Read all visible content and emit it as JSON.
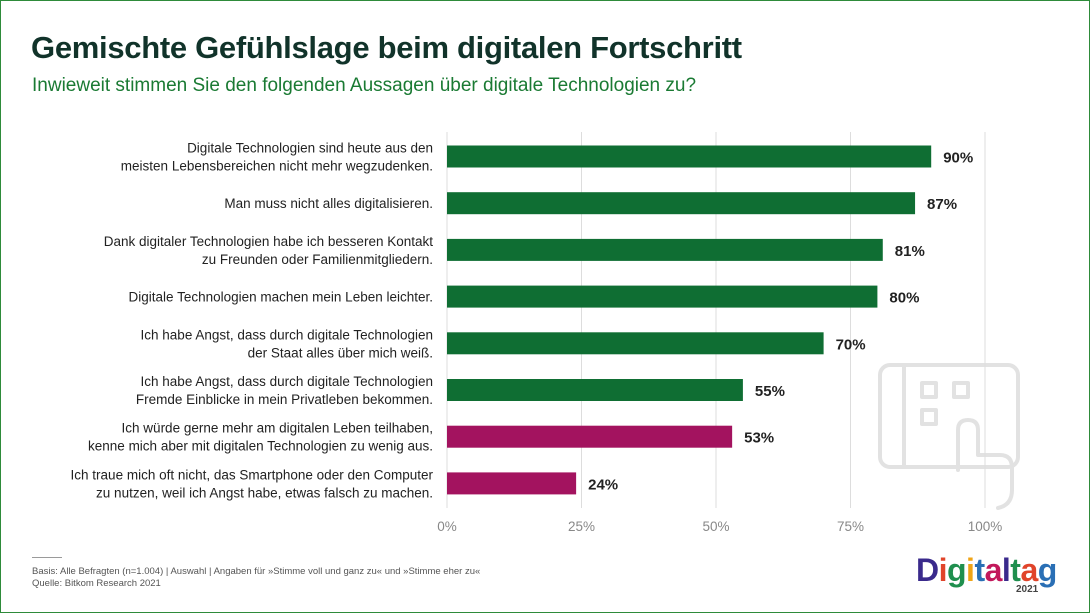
{
  "header": {
    "title": "Gemischte Gefühlslage beim digitalen Fortschritt",
    "subtitle": "Inwieweit stimmen Sie den folgenden Aussagen über digitale Technologien zu?"
  },
  "chart_data": {
    "type": "bar",
    "orientation": "horizontal",
    "categories": [
      [
        "Digitale Technologien sind heute aus den",
        "meisten Lebensbereichen nicht mehr wegzudenken."
      ],
      [
        "Man muss nicht alles digitalisieren."
      ],
      [
        "Dank digitaler Technologien habe ich besseren Kontakt",
        "zu Freunden oder Familienmitgliedern."
      ],
      [
        "Digitale Technologien machen mein Leben leichter."
      ],
      [
        "Ich habe Angst, dass durch digitale Technologien",
        "der Staat alles über mich weiß."
      ],
      [
        "Ich habe Angst, dass durch digitale Technologien",
        "Fremde Einblicke in mein Privatleben bekommen."
      ],
      [
        "Ich würde gerne mehr am digitalen Leben teilhaben,",
        "kenne mich aber mit digitalen Technologien zu wenig aus."
      ],
      [
        "Ich traue mich oft nicht, das Smartphone oder den Computer",
        "zu nutzen, weil ich Angst habe, etwas falsch zu machen."
      ]
    ],
    "values": [
      90,
      87,
      81,
      80,
      70,
      55,
      53,
      24
    ],
    "value_labels": [
      "90%",
      "87%",
      "81%",
      "80%",
      "70%",
      "55%",
      "53%",
      "24%"
    ],
    "bar_colors": [
      "#0f6e33",
      "#0f6e33",
      "#0f6e33",
      "#0f6e33",
      "#0f6e33",
      "#0f6e33",
      "#a3135f",
      "#a3135f"
    ],
    "xlim": [
      0,
      100
    ],
    "xticks": [
      0,
      25,
      50,
      75,
      100
    ],
    "xtick_labels": [
      "0%",
      "25%",
      "50%",
      "75%",
      "100%"
    ],
    "grid": true
  },
  "footer": {
    "basis": "Basis: Alle Befragten (n=1.004) | Auswahl | Angaben für »Stimme voll und ganz zu« und »Stimme eher zu«",
    "source": "Quelle: Bitkom Research 2021"
  },
  "logo": {
    "letters": [
      "D",
      "i",
      "g",
      "i",
      "t",
      "a",
      "l",
      "t",
      "a",
      "g"
    ],
    "letter_colors": [
      "#3a2a8c",
      "#e0442a",
      "#1f8f4e",
      "#f0a416",
      "#2a6fb5",
      "#c2185b",
      "#3a2a8c",
      "#1f8f4e",
      "#e0442a",
      "#2a6fb5"
    ],
    "year": "2021"
  }
}
